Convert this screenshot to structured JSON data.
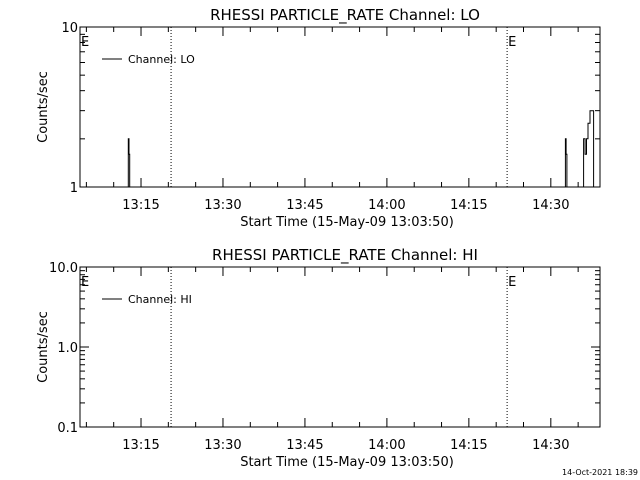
{
  "chart_data": [
    {
      "type": "line",
      "title": "RHESSI PARTICLE_RATE Channel: LO",
      "xlabel": "Start Time (15-May-09 13:03:50)",
      "ylabel": "Counts/sec",
      "yscale": "log",
      "ylim": [
        1,
        10
      ],
      "y_ticks": [
        "1",
        "10"
      ],
      "xlim": [
        "13:03:50",
        "14:39:00"
      ],
      "x_ticks": [
        "13:15",
        "13:30",
        "13:45",
        "14:00",
        "14:15",
        "14:30"
      ],
      "legend": {
        "entry": "Channel: LO",
        "placement": "top-left"
      },
      "event_markers": [
        {
          "time": "13:03:50",
          "label": "E"
        },
        {
          "time": "13:20:30",
          "label": ""
        },
        {
          "time": "14:22:00",
          "label": "E"
        },
        {
          "time": "14:39:00",
          "label": ""
        }
      ],
      "series": [
        {
          "name": "Channel: LO",
          "points": [
            [
              "13:12:40",
              1
            ],
            [
              "13:12:40",
              2
            ],
            [
              "13:12:48",
              2
            ],
            [
              "13:12:48",
              1.6
            ],
            [
              "13:12:56",
              1.6
            ],
            [
              "13:12:56",
              1
            ],
            [
              "14:32:40",
              1
            ],
            [
              "14:32:40",
              2
            ],
            [
              "14:32:48",
              2
            ],
            [
              "14:32:48",
              1.6
            ],
            [
              "14:32:56",
              1.6
            ],
            [
              "14:32:56",
              1
            ],
            [
              "14:36:00",
              1
            ],
            [
              "14:36:00",
              2
            ],
            [
              "14:36:16",
              2
            ],
            [
              "14:36:16",
              1.6
            ],
            [
              "14:36:32",
              1.6
            ],
            [
              "14:36:32",
              2
            ],
            [
              "14:36:48",
              2
            ],
            [
              "14:36:48",
              2.5
            ],
            [
              "14:37:10",
              2.5
            ],
            [
              "14:37:10",
              3
            ],
            [
              "14:37:50",
              3
            ],
            [
              "14:37:50",
              1
            ]
          ]
        }
      ]
    },
    {
      "type": "line",
      "title": "RHESSI PARTICLE_RATE Channel: HI",
      "xlabel": "Start Time (15-May-09 13:03:50)",
      "ylabel": "Counts/sec",
      "yscale": "log",
      "ylim": [
        0.1,
        10
      ],
      "y_ticks": [
        "0.1",
        "1.0",
        "10.0"
      ],
      "xlim": [
        "13:03:50",
        "14:39:00"
      ],
      "x_ticks": [
        "13:15",
        "13:30",
        "13:45",
        "14:00",
        "14:15",
        "14:30"
      ],
      "legend": {
        "entry": "Channel: HI",
        "placement": "top-left"
      },
      "event_markers": [
        {
          "time": "13:03:50",
          "label": "E"
        },
        {
          "time": "13:20:30",
          "label": ""
        },
        {
          "time": "14:22:00",
          "label": "E"
        },
        {
          "time": "14:39:00",
          "label": ""
        }
      ],
      "series": [
        {
          "name": "Channel: HI",
          "points": []
        }
      ]
    }
  ],
  "footer": {
    "timestamp": "14-Oct-2021 18:39"
  }
}
